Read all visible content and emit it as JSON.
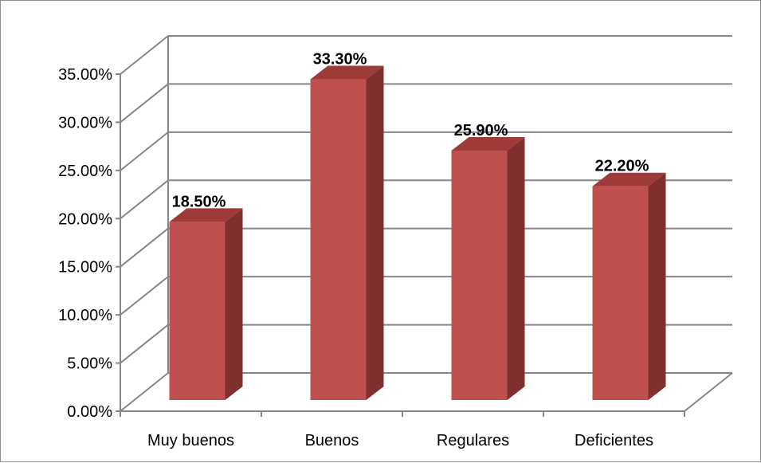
{
  "chart_data": {
    "type": "bar",
    "style": "3d-column",
    "categories": [
      "Muy buenos",
      "Buenos",
      "Regulares",
      "Deficientes"
    ],
    "values": [
      0.185,
      0.333,
      0.259,
      0.222
    ],
    "data_labels": [
      "18.50%",
      "33.30%",
      "25.90%",
      "22.20%"
    ],
    "ylim": [
      0,
      0.35
    ],
    "y_ticks": [
      0,
      0.05,
      0.1,
      0.15,
      0.2,
      0.25,
      0.3,
      0.35
    ],
    "y_tick_labels": [
      "0.00%",
      "5.00%",
      "10.00%",
      "15.00%",
      "20.00%",
      "25.00%",
      "30.00%",
      "35.00%"
    ],
    "title": "",
    "xlabel": "",
    "ylabel": "",
    "grid": true,
    "legend": "none",
    "colors": {
      "bar_front": "#c0504d",
      "bar_side": "#7f2f2d",
      "bar_top": "#9e3b38",
      "grid": "#868686"
    }
  }
}
